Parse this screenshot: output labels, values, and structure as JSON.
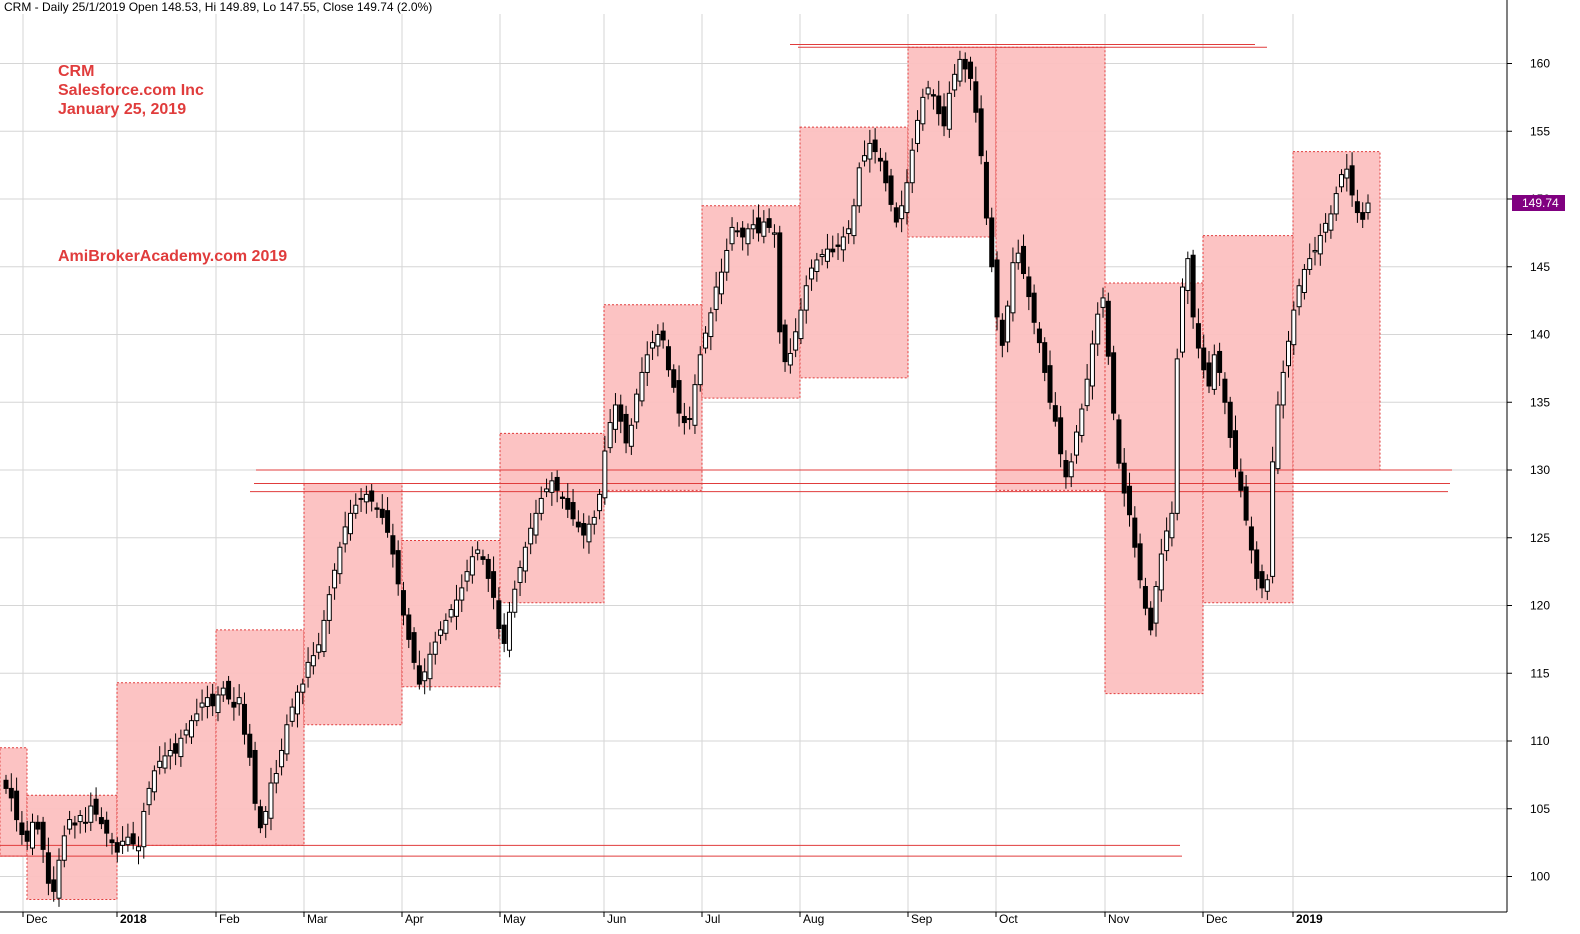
{
  "header": "CRM - Daily 25/1/2019 Open 148.53, Hi 149.89, Lo 147.55, Close 149.74 (2.0%)",
  "annotations": [
    "CRM",
    "Salesforce.com Inc",
    "January 25, 2019",
    "AmiBrokerAcademy.com  2019"
  ],
  "colors": {
    "box": "#fcc0c0",
    "box_border": "#e03c3c",
    "line": "#e03c3c",
    "grid": "#d6d6d6",
    "last_tag": "#800080",
    "candle": "#000000"
  },
  "chart_data": {
    "type": "candlestick",
    "ylim": [
      98,
      162
    ],
    "yticks": [
      100,
      105,
      110,
      115,
      120,
      125,
      130,
      135,
      140,
      145,
      150,
      155,
      160
    ],
    "last_close_label": "149.74",
    "months": [
      {
        "label": "Dec",
        "bold": false
      },
      {
        "label": "2018",
        "bold": true
      },
      {
        "label": "Feb",
        "bold": false
      },
      {
        "label": "Mar",
        "bold": false
      },
      {
        "label": "Apr",
        "bold": false
      },
      {
        "label": "May",
        "bold": false
      },
      {
        "label": "Jun",
        "bold": false
      },
      {
        "label": "Jul",
        "bold": false
      },
      {
        "label": "Aug",
        "bold": false
      },
      {
        "label": "Sep",
        "bold": false
      },
      {
        "label": "Oct",
        "bold": false
      },
      {
        "label": "Nov",
        "bold": false
      },
      {
        "label": "Dec",
        "bold": false
      },
      {
        "label": "2019",
        "bold": true
      }
    ],
    "month_ranges": [
      {
        "month": "Nov 2017",
        "high": 109.5,
        "low": 101.5
      },
      {
        "month": "Dec 2017",
        "high": 106.0,
        "low": 98.3
      },
      {
        "month": "Jan 2018",
        "high": 114.3,
        "low": 102.3
      },
      {
        "month": "Feb 2018",
        "high": 118.2,
        "low": 102.3
      },
      {
        "month": "Mar 2018",
        "high": 129.0,
        "low": 111.2
      },
      {
        "month": "Apr 2018",
        "high": 124.8,
        "low": 114.0
      },
      {
        "month": "May 2018",
        "high": 132.7,
        "low": 120.2
      },
      {
        "month": "Jun 2018",
        "high": 142.2,
        "low": 128.5
      },
      {
        "month": "Jul 2018",
        "high": 149.5,
        "low": 135.3
      },
      {
        "month": "Aug 2018",
        "high": 155.3,
        "low": 136.8
      },
      {
        "month": "Sep 2018",
        "high": 161.2,
        "low": 147.2
      },
      {
        "month": "Oct 2018",
        "high": 161.2,
        "low": 128.5
      },
      {
        "month": "Nov 2018",
        "high": 143.8,
        "low": 113.5
      },
      {
        "month": "Dec 2018",
        "high": 147.3,
        "low": 120.2
      },
      {
        "month": "Jan 2019",
        "high": 153.5,
        "low": 130.0
      }
    ],
    "levels": [
      161.4,
      161.2,
      130.0,
      129.0,
      128.4,
      102.3,
      101.5
    ],
    "closes": [
      106.5,
      105.8,
      104.2,
      103.1,
      102.6,
      104.0,
      103.5,
      102.0,
      99.5,
      98.9,
      101.2,
      103.0,
      104.2,
      103.8,
      104.5,
      104.0,
      105.2,
      104.6,
      103.9,
      103.2,
      102.5,
      101.8,
      102.6,
      102.9,
      102.4,
      102.2,
      104.8,
      106.5,
      107.8,
      108.5,
      108.9,
      109.3,
      109.1,
      110.2,
      110.8,
      111.5,
      112.0,
      112.8,
      113.2,
      112.6,
      113.4,
      113.9,
      113.1,
      112.5,
      113.2,
      110.5,
      108.8,
      105.4,
      103.6,
      104.8,
      106.9,
      107.6,
      109.3,
      111.2,
      112.5,
      113.6,
      114.2,
      115.8,
      116.3,
      117.1,
      118.9,
      120.8,
      122.6,
      124.3,
      125.8,
      126.8,
      127.4,
      127.9,
      128.2,
      127.7,
      127.1,
      126.5,
      125.4,
      123.8,
      121.6,
      119.3,
      117.5,
      115.8,
      114.2,
      115.1,
      116.4,
      117.3,
      118.2,
      118.9,
      119.7,
      120.4,
      121.3,
      122.5,
      123.6,
      124.1,
      123.4,
      122.0,
      120.6,
      118.3,
      117.2,
      119.5,
      121.2,
      122.8,
      124.3,
      125.7,
      126.8,
      127.9,
      128.6,
      129.2,
      128.5,
      127.9,
      127.1,
      126.4,
      125.8,
      125.2,
      126.0,
      126.5,
      128.2,
      131.4,
      133.5,
      134.8,
      133.6,
      132.0,
      133.3,
      135.6,
      137.2,
      138.5,
      139.4,
      140.0,
      139.6,
      137.4,
      136.1,
      134.2,
      133.5,
      133.8,
      136.3,
      138.5,
      140.1,
      141.6,
      143.5,
      144.6,
      146.2,
      147.9,
      147.6,
      147.2,
      147.8,
      148.1,
      147.5,
      148.3,
      147.9,
      147.5,
      140.2,
      138.0,
      138.6,
      140.2,
      141.8,
      143.6,
      144.9,
      145.5,
      145.9,
      146.3,
      146.1,
      146.5,
      147.2,
      147.8,
      149.5,
      152.3,
      153.2,
      154.1,
      153.5,
      152.8,
      151.2,
      149.6,
      148.3,
      149.5,
      151.2,
      153.6,
      155.8,
      157.5,
      158.2,
      157.6,
      156.3,
      155.4,
      157.8,
      159.2,
      160.3,
      159.6,
      158.9,
      156.4,
      153.2,
      148.6,
      145.0,
      141.3,
      139.2,
      142.1,
      145.3,
      146.0,
      144.5,
      142.8,
      140.9,
      139.4,
      137.2,
      135.0,
      133.6,
      131.2,
      129.5,
      130.6,
      132.8,
      134.5,
      136.7,
      139.3,
      141.5,
      142.7,
      138.4,
      134.2,
      130.5,
      128.3,
      126.7,
      124.3,
      121.9,
      119.8,
      118.2,
      121.4,
      123.8,
      125.5,
      126.8,
      138.2,
      143.5,
      145.6,
      141.3,
      139.0,
      137.4,
      136.2,
      138.5,
      137.2,
      135.0,
      132.4,
      130.1,
      128.5,
      126.3,
      124.1,
      122.0,
      121.3,
      121.9,
      130.6,
      134.8,
      137.2,
      139.5,
      141.8,
      143.6,
      144.8,
      145.6,
      146.2,
      147.3,
      148.2,
      148.9,
      150.4,
      151.8,
      152.2,
      150.3,
      149.0,
      148.5,
      149.7
    ]
  }
}
